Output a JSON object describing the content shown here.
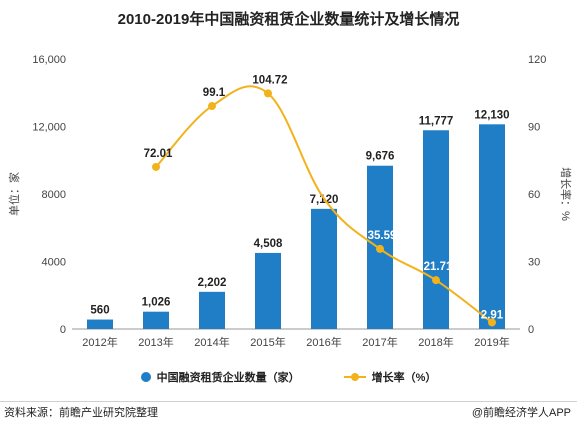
{
  "chart_data": {
    "type": "bar",
    "title": "2010-2019年中国融资租赁企业数量统计及增长情况",
    "categories": [
      "2012年",
      "2013年",
      "2014年",
      "2015年",
      "2016年",
      "2017年",
      "2018年",
      "2019年"
    ],
    "series": [
      {
        "name": "中国融资租赁企业数量（家）",
        "type": "bar",
        "axis": "left",
        "color": "#1f7ec5",
        "values": [
          560,
          1026,
          2202,
          4508,
          7120,
          9676,
          11777,
          12130
        ],
        "labels": [
          "560",
          "1,026",
          "2,202",
          "4,508",
          "7,120",
          "9,676",
          "11,777",
          "12,130"
        ]
      },
      {
        "name": "增长率（%）",
        "type": "line",
        "axis": "right",
        "color": "#f2b21c",
        "values": [
          null,
          72.01,
          99.1,
          104.72,
          57.94,
          35.59,
          21.71,
          2.91
        ],
        "labels": [
          "",
          "72.01",
          "99.1",
          "104.72",
          "",
          "35.59",
          "21.71",
          "2.91"
        ]
      }
    ],
    "ylabel": "单位：家",
    "y2label": "增长率：%",
    "ylim": [
      0,
      16000
    ],
    "y2lim": [
      0,
      120
    ],
    "yticks": [
      "0",
      "4000",
      "8000",
      "12,000",
      "16,000"
    ],
    "y2ticks": [
      "0",
      "30",
      "60",
      "90",
      "120"
    ],
    "grid": false,
    "legend_position": "bottom"
  },
  "footer": {
    "source": "资料来源：前瞻产业研究院整理",
    "credit": "@前瞻经济学人APP"
  }
}
